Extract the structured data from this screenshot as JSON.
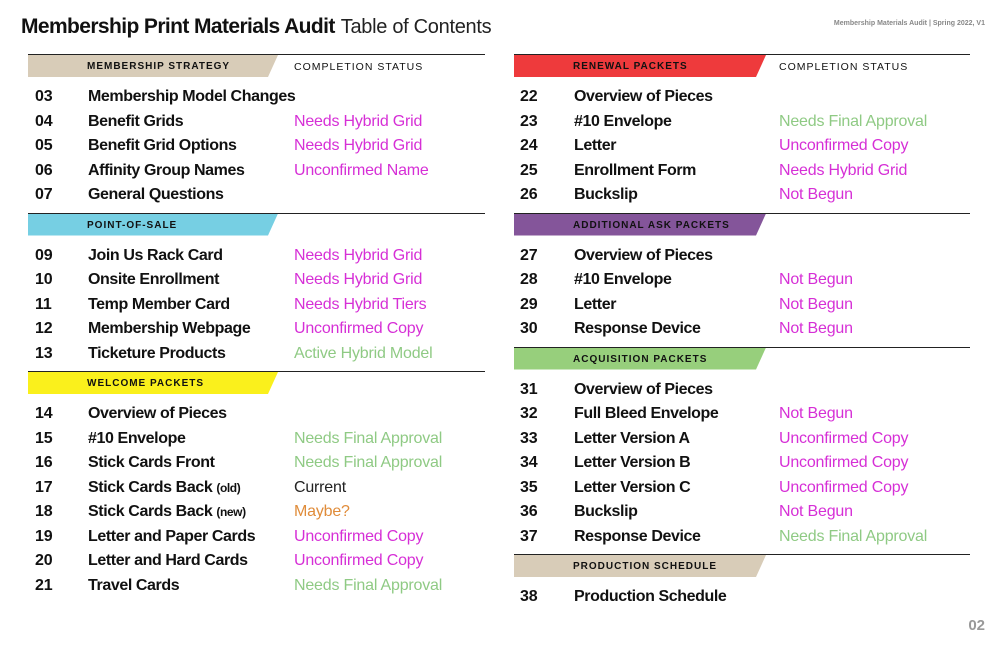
{
  "header": {
    "title": "Membership Print Materials Audit",
    "subtitle": "Table of Contents",
    "meta": "Membership Materials Audit | Spring 2022, V1"
  },
  "page_number": "02",
  "colors": {
    "purple_status": "#d62fd6",
    "green_status": "#8fca84",
    "orange_status": "#e08c3a",
    "black_status": "#222222"
  },
  "left_column": [
    {
      "label": "MEMBERSHIP STRATEGY",
      "status_header": "COMPLETION STATUS",
      "color": "#d8ccb8",
      "banner_width": 250,
      "items": [
        {
          "num": "03",
          "name": "Membership Model Changes",
          "suffix": "",
          "status": "",
          "status_color": "#222222"
        },
        {
          "num": "04",
          "name": "Benefit Grids",
          "suffix": "",
          "status": "Needs Hybrid Grid",
          "status_color": "#d62fd6"
        },
        {
          "num": "05",
          "name": "Benefit Grid Options",
          "suffix": "",
          "status": "Needs Hybrid Grid",
          "status_color": "#d62fd6"
        },
        {
          "num": "06",
          "name": "Affinity Group Names",
          "suffix": "",
          "status": "Unconfirmed Name",
          "status_color": "#d62fd6"
        },
        {
          "num": "07",
          "name": "General Questions",
          "suffix": "",
          "status": "",
          "status_color": "#222222"
        }
      ]
    },
    {
      "label": "POINT-OF-SALE",
      "status_header": "",
      "color": "#76cfe3",
      "banner_width": 250,
      "items": [
        {
          "num": "09",
          "name": "Join Us Rack Card",
          "suffix": "",
          "status": "Needs Hybrid Grid",
          "status_color": "#d62fd6"
        },
        {
          "num": "10",
          "name": "Onsite Enrollment",
          "suffix": "",
          "status": "Needs Hybrid Grid",
          "status_color": "#d62fd6"
        },
        {
          "num": "11",
          "name": "Temp Member Card",
          "suffix": "",
          "status": "Needs Hybrid Tiers",
          "status_color": "#d62fd6"
        },
        {
          "num": "12",
          "name": "Membership Webpage",
          "suffix": "",
          "status": "Unconfirmed Copy",
          "status_color": "#d62fd6"
        },
        {
          "num": "13",
          "name": "Ticketure Products",
          "suffix": "",
          "status": "Active Hybrid Model",
          "status_color": "#8fca84"
        }
      ]
    },
    {
      "label": "WELCOME PACKETS",
      "status_header": "",
      "color": "#faf01c",
      "banner_width": 250,
      "items": [
        {
          "num": "14",
          "name": "Overview of Pieces",
          "suffix": "",
          "status": "",
          "status_color": "#222222"
        },
        {
          "num": "15",
          "name": "#10 Envelope",
          "suffix": "",
          "status": "Needs Final Approval",
          "status_color": "#8fca84"
        },
        {
          "num": "16",
          "name": "Stick Cards Front",
          "suffix": "",
          "status": "Needs Final Approval",
          "status_color": "#8fca84"
        },
        {
          "num": "17",
          "name": "Stick Cards Back",
          "suffix": "(old)",
          "status": "Current",
          "status_color": "#222222"
        },
        {
          "num": "18",
          "name": "Stick Cards Back",
          "suffix": "(new)",
          "status": "Maybe?",
          "status_color": "#e08c3a"
        },
        {
          "num": "19",
          "name": "Letter and Paper Cards",
          "suffix": "",
          "status": "Unconfirmed Copy",
          "status_color": "#d62fd6"
        },
        {
          "num": "20",
          "name": "Letter and Hard Cards",
          "suffix": "",
          "status": "Unconfirmed Copy",
          "status_color": "#d62fd6"
        },
        {
          "num": "21",
          "name": "Travel Cards",
          "suffix": "",
          "status": "Needs Final Approval",
          "status_color": "#8fca84"
        }
      ]
    }
  ],
  "right_column": [
    {
      "label": "RENEWAL PACKETS",
      "status_header": "COMPLETION STATUS",
      "color": "#ee3a3c",
      "banner_width": 252,
      "items": [
        {
          "num": "22",
          "name": "Overview of Pieces",
          "suffix": "",
          "status": "",
          "status_color": "#222222"
        },
        {
          "num": "23",
          "name": "#10 Envelope",
          "suffix": "",
          "status": "Needs Final Approval",
          "status_color": "#8fca84"
        },
        {
          "num": "24",
          "name": "Letter",
          "suffix": "",
          "status": "Unconfirmed Copy",
          "status_color": "#d62fd6"
        },
        {
          "num": "25",
          "name": "Enrollment Form",
          "suffix": "",
          "status": "Needs Hybrid Grid",
          "status_color": "#d62fd6"
        },
        {
          "num": "26",
          "name": "Buckslip",
          "suffix": "",
          "status": "Not Begun",
          "status_color": "#d62fd6"
        }
      ]
    },
    {
      "label": "ADDITIONAL ASK PACKETS",
      "status_header": "",
      "color": "#84559a",
      "banner_width": 252,
      "items": [
        {
          "num": "27",
          "name": "Overview of Pieces",
          "suffix": "",
          "status": "",
          "status_color": "#222222"
        },
        {
          "num": "28",
          "name": "#10 Envelope",
          "suffix": "",
          "status": "Not Begun",
          "status_color": "#d62fd6"
        },
        {
          "num": "29",
          "name": "Letter",
          "suffix": "",
          "status": "Not Begun",
          "status_color": "#d62fd6"
        },
        {
          "num": "30",
          "name": "Response Device",
          "suffix": "",
          "status": "Not Begun",
          "status_color": "#d62fd6"
        }
      ]
    },
    {
      "label": "ACQUISITION PACKETS",
      "status_header": "",
      "color": "#97cf7c",
      "banner_width": 252,
      "items": [
        {
          "num": "31",
          "name": "Overview of Pieces",
          "suffix": "",
          "status": "",
          "status_color": "#222222"
        },
        {
          "num": "32",
          "name": "Full Bleed Envelope",
          "suffix": "",
          "status": "Not Begun",
          "status_color": "#d62fd6"
        },
        {
          "num": "33",
          "name": "Letter Version A",
          "suffix": "",
          "status": "Unconfirmed Copy",
          "status_color": "#d62fd6"
        },
        {
          "num": "34",
          "name": "Letter Version B",
          "suffix": "",
          "status": "Unconfirmed Copy",
          "status_color": "#d62fd6"
        },
        {
          "num": "35",
          "name": "Letter Version C",
          "suffix": "",
          "status": "Unconfirmed Copy",
          "status_color": "#d62fd6"
        },
        {
          "num": "36",
          "name": "Buckslip",
          "suffix": "",
          "status": "Not Begun",
          "status_color": "#d62fd6"
        },
        {
          "num": "37",
          "name": "Response Device",
          "suffix": "",
          "status": "Needs Final Approval",
          "status_color": "#8fca84"
        }
      ]
    },
    {
      "label": "PRODUCTION SCHEDULE",
      "status_header": "",
      "color": "#d8ccb8",
      "banner_width": 252,
      "items": [
        {
          "num": "38",
          "name": "Production Schedule",
          "suffix": "",
          "status": "",
          "status_color": "#222222"
        }
      ]
    }
  ]
}
